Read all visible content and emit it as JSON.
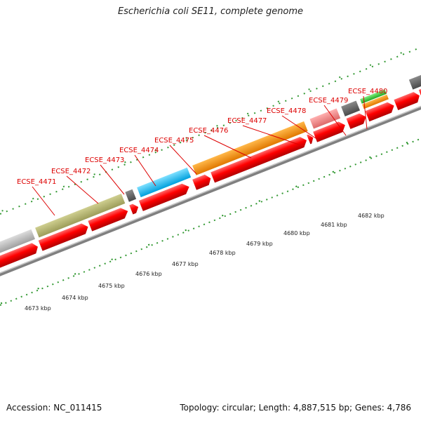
{
  "title": "Escherichia coli SE11, complete genome",
  "accession": "Accession: NC_011415",
  "summary": "Topology: circular; Length: 4,887,515 bp; Genes: 4,786",
  "colors": {
    "gene_label": "#dd0000",
    "forward_cds": "#ff0000",
    "backbone": "#808080",
    "ticks": "#1f8f1f"
  },
  "gene_labels": [
    {
      "text": "ECSE_4471"
    },
    {
      "text": "ECSE_4472"
    },
    {
      "text": "ECSE_4473"
    },
    {
      "text": "ECSE_4474"
    },
    {
      "text": "ECSE_4475"
    },
    {
      "text": "ECSE_4476"
    },
    {
      "text": "ECSE_4477"
    },
    {
      "text": "ECSE_4478"
    },
    {
      "text": "ECSE_4479"
    },
    {
      "text": "ECSE_4480"
    }
  ],
  "ruler_labels": [
    {
      "text": "4673 kbp"
    },
    {
      "text": "4674 kbp"
    },
    {
      "text": "4675 kbp"
    },
    {
      "text": "4676 kbp"
    },
    {
      "text": "4677 kbp"
    },
    {
      "text": "4678 kbp"
    },
    {
      "text": "4679 kbp"
    },
    {
      "text": "4680 kbp"
    },
    {
      "text": "4681 kbp"
    },
    {
      "text": "4682 kbp"
    }
  ]
}
